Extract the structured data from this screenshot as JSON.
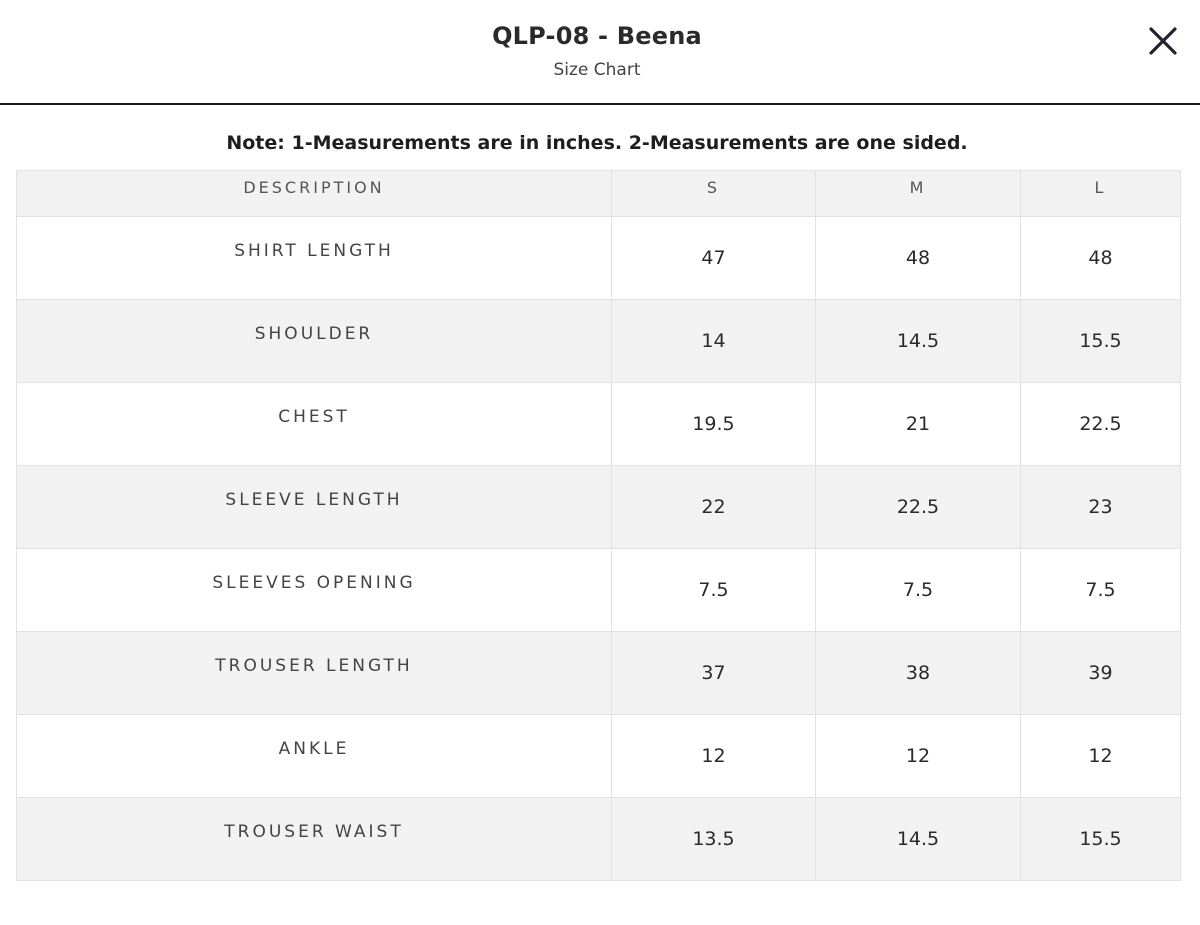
{
  "modal": {
    "title": "QLP-08 - Beena",
    "subtitle": "Size Chart",
    "close_icon": "close-icon"
  },
  "note": "Note: 1-Measurements are in inches. 2-Measurements are one sided.",
  "table": {
    "headers": [
      "DESCRIPTION",
      "S",
      "M",
      "L"
    ],
    "rows": [
      {
        "label": "SHIRT LENGTH",
        "values": [
          "47",
          "48",
          "48"
        ]
      },
      {
        "label": "SHOULDER",
        "values": [
          "14",
          "14.5",
          "15.5"
        ]
      },
      {
        "label": "CHEST",
        "values": [
          "19.5",
          "21",
          "22.5"
        ]
      },
      {
        "label": "SLEEVE LENGTH",
        "values": [
          "22",
          "22.5",
          "23"
        ]
      },
      {
        "label": "SLEEVES OPENING",
        "values": [
          "7.5",
          "7.5",
          "7.5"
        ]
      },
      {
        "label": "TROUSER LENGTH",
        "values": [
          "37",
          "38",
          "39"
        ]
      },
      {
        "label": "ANKLE",
        "values": [
          "12",
          "12",
          "12"
        ]
      },
      {
        "label": "TROUSER WAIST",
        "values": [
          "13.5",
          "14.5",
          "15.5"
        ]
      }
    ]
  }
}
